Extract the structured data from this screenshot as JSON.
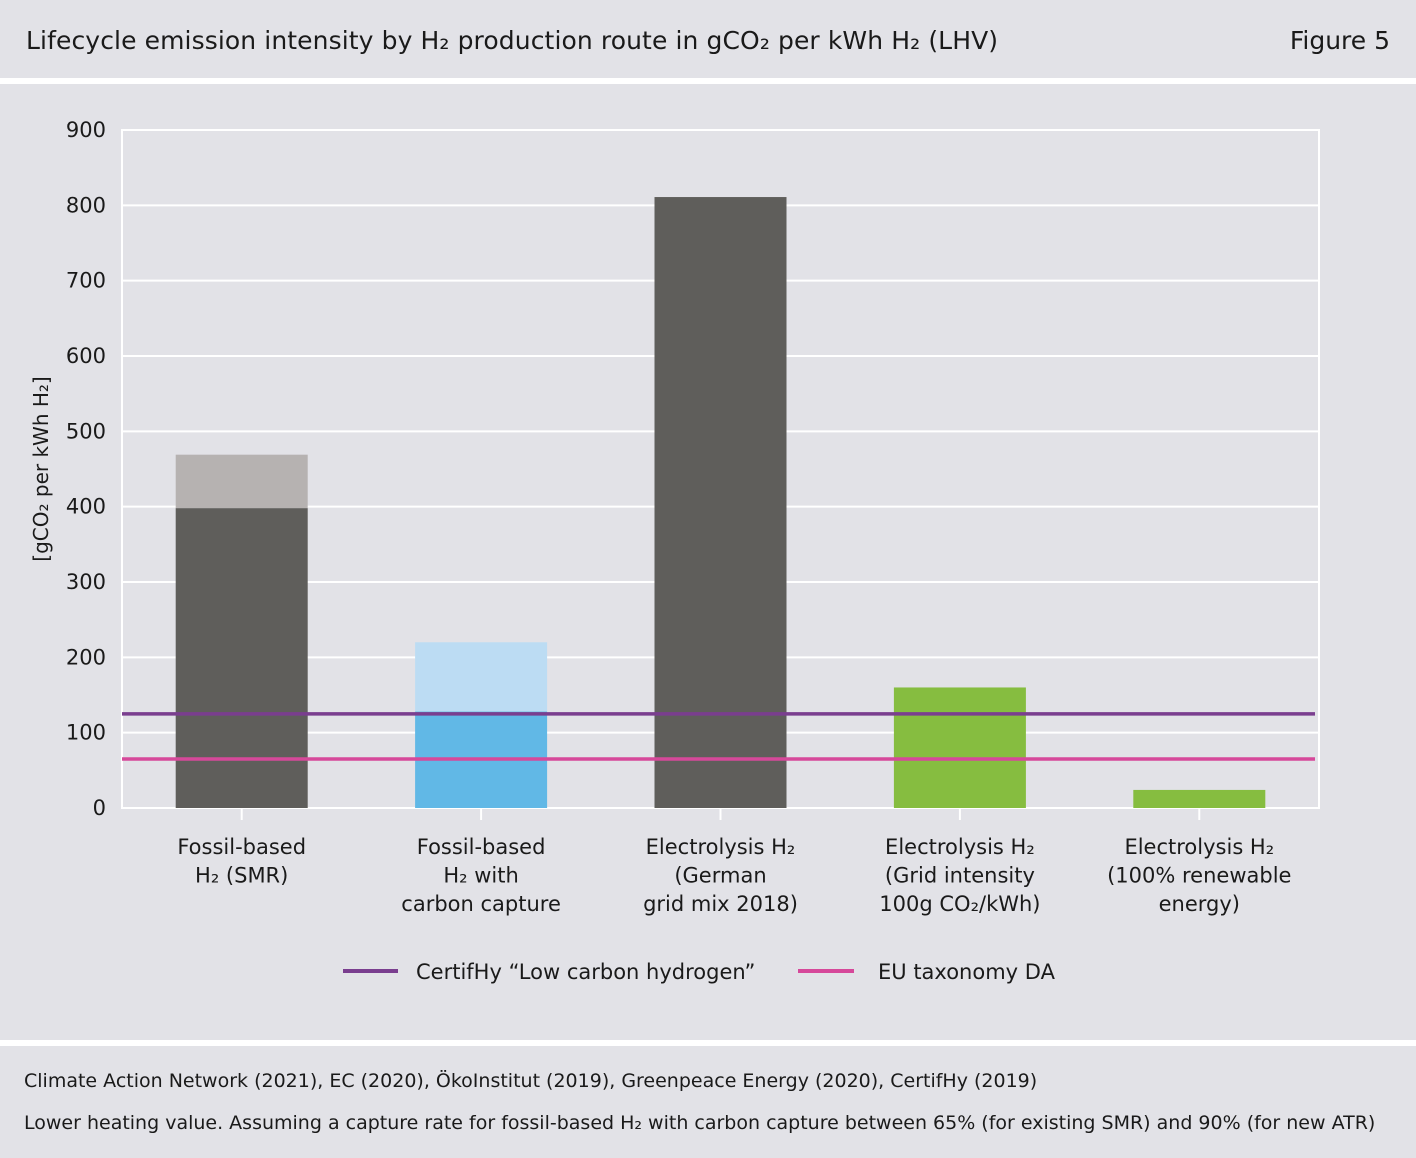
{
  "header": {
    "title": "Lifecycle emission intensity by H₂ production route in gCO₂ per kWh H₂ (LHV)",
    "figure_label": "Figure 5"
  },
  "footer": {
    "source": "Climate Action Network (2021), EC (2020), ÖkoInstitut (2019), Greenpeace Energy (2020), CertifHy (2019)",
    "note": "Lower heating value. Assuming a capture rate for fossil-based H₂ with carbon capture between 65% (for existing SMR) and 90% (for new ATR)"
  },
  "chart_data": {
    "type": "bar",
    "ylabel": "[gCO₂ per kWh H₂]",
    "ylim": [
      0,
      900
    ],
    "yticks": [
      "0",
      "100",
      "200",
      "300",
      "400",
      "500",
      "600",
      "700",
      "800",
      "900"
    ],
    "grid": true,
    "categories": [
      [
        "Fossil-based",
        "H₂ (SMR)"
      ],
      [
        "Fossil-based",
        "H₂ with",
        "carbon capture"
      ],
      [
        "Electrolysis H₂",
        "(German",
        "grid mix 2018)"
      ],
      [
        "Electrolysis H₂",
        "(Grid intensity",
        "100g CO₂/kWh)"
      ],
      [
        "Electrolysis H₂",
        "(100% renewable",
        "energy)"
      ]
    ],
    "bars": [
      {
        "low": 398,
        "high": 469,
        "color": "#5f5e5b",
        "range_color": "#b6b2b1"
      },
      {
        "low": 128,
        "high": 220,
        "color": "#61b8e6",
        "range_color": "#bcdcf3"
      },
      {
        "low": 811,
        "high": 811,
        "color": "#5f5e5b",
        "range_color": "#5f5e5b"
      },
      {
        "low": 160,
        "high": 160,
        "color": "#86bd40",
        "range_color": "#86bd40"
      },
      {
        "low": 24,
        "high": 24,
        "color": "#86bd40",
        "range_color": "#86bd40"
      }
    ],
    "reference_lines": [
      {
        "name": "CertifHy “Low carbon hydrogen”",
        "value": 125,
        "color": "#7a3e8f"
      },
      {
        "name": "EU taxonomy DA",
        "value": 65,
        "color": "#d6489a"
      }
    ],
    "legend_position": "bottom"
  }
}
